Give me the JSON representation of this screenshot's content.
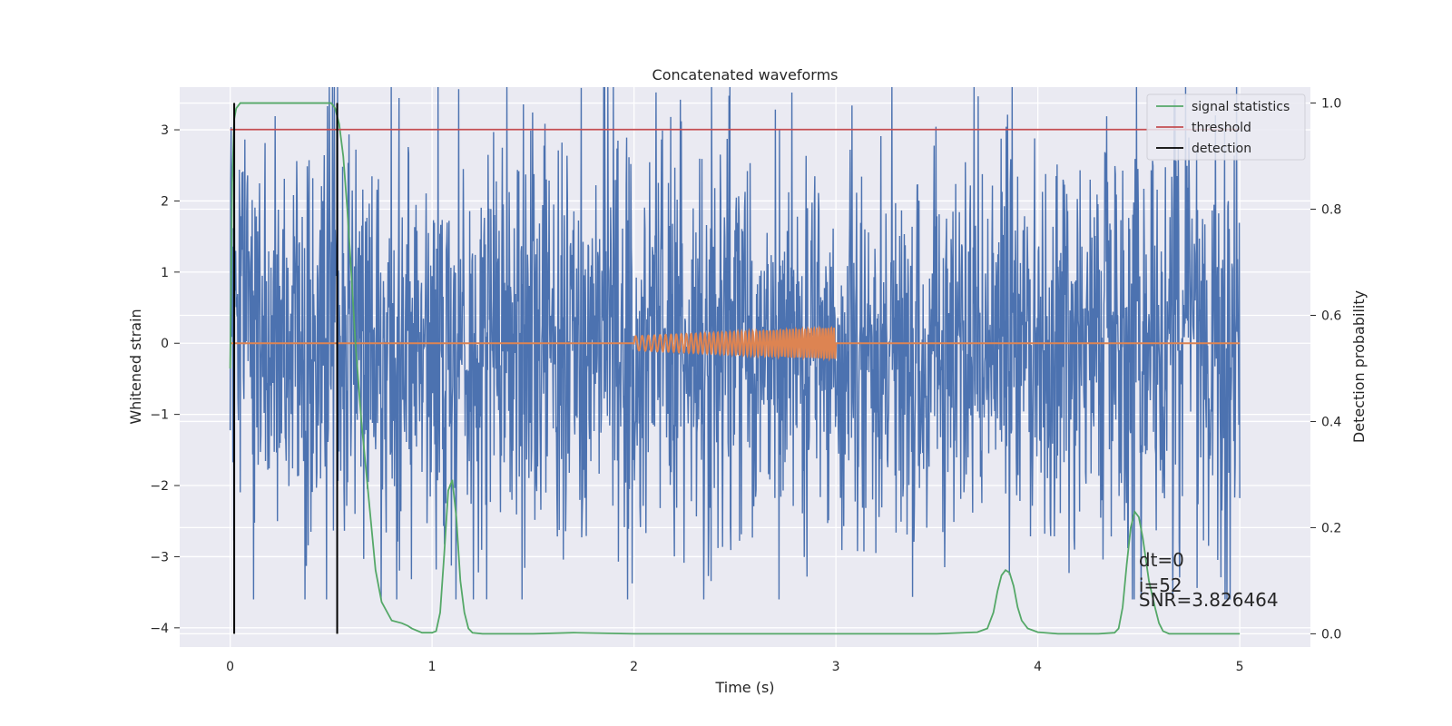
{
  "chart_data": {
    "type": "line",
    "title": "Concatenated waveforms",
    "xlabel": "Time (s)",
    "ylabel": "Whitened strain",
    "y2label": "Detection probability",
    "xlim": [
      -0.25,
      5.35
    ],
    "ylim": [
      -4.27,
      3.6
    ],
    "y2lim": [
      -0.025,
      1.03
    ],
    "x_ticks": [
      0,
      1,
      2,
      3,
      4,
      5
    ],
    "y_ticks": [
      -4,
      -3,
      -2,
      -1,
      0,
      1,
      2,
      3
    ],
    "y2_ticks": [
      0.0,
      0.2,
      0.4,
      0.6,
      0.8,
      1.0
    ],
    "x_tick_labels": [
      "0",
      "1",
      "2",
      "3",
      "4",
      "5"
    ],
    "y_tick_labels": [
      "−4",
      "−3",
      "−2",
      "−1",
      "0",
      "1",
      "2",
      "3"
    ],
    "y2_tick_labels": [
      "0.0",
      "0.2",
      "0.4",
      "0.6",
      "0.8",
      "1.0"
    ],
    "grid": true,
    "legend_position": "top-right",
    "series": [
      {
        "name": "",
        "axis": "left",
        "kind": "noise",
        "color": "#4c72b0",
        "x_range": [
          0,
          5
        ],
        "typical_amplitude": 1.5,
        "max_abs": 3.6
      },
      {
        "name": "",
        "axis": "left",
        "kind": "chirp",
        "color": "#dd8452",
        "x_range": [
          0,
          5
        ],
        "chirp_range": [
          2,
          3
        ],
        "amplitude_start": 0.1,
        "amplitude_end": 0.22
      },
      {
        "name": "signal statistics",
        "axis": "right",
        "color": "#55a868",
        "x": [
          0.0,
          0.01,
          0.02,
          0.03,
          0.05,
          0.08,
          0.12,
          0.2,
          0.3,
          0.4,
          0.45,
          0.5,
          0.52,
          0.54,
          0.56,
          0.58,
          0.6,
          0.62,
          0.65,
          0.68,
          0.7,
          0.72,
          0.75,
          0.8,
          0.85,
          0.88,
          0.9,
          0.95,
          1.0,
          1.02,
          1.04,
          1.06,
          1.08,
          1.1,
          1.12,
          1.14,
          1.16,
          1.18,
          1.2,
          1.25,
          1.5,
          1.7,
          2.0,
          2.5,
          3.0,
          3.5,
          3.7,
          3.75,
          3.78,
          3.8,
          3.82,
          3.84,
          3.86,
          3.88,
          3.9,
          3.92,
          3.95,
          4.0,
          4.1,
          4.3,
          4.38,
          4.4,
          4.42,
          4.44,
          4.46,
          4.48,
          4.5,
          4.52,
          4.55,
          4.58,
          4.6,
          4.62,
          4.65,
          4.7,
          5.0
        ],
        "values": [
          0.5,
          0.85,
          0.97,
          0.99,
          1.0,
          1.0,
          1.0,
          1.0,
          1.0,
          1.0,
          1.0,
          1.0,
          0.99,
          0.96,
          0.9,
          0.8,
          0.68,
          0.55,
          0.4,
          0.28,
          0.2,
          0.12,
          0.06,
          0.025,
          0.02,
          0.015,
          0.01,
          0.002,
          0.002,
          0.005,
          0.04,
          0.15,
          0.27,
          0.29,
          0.22,
          0.1,
          0.04,
          0.01,
          0.002,
          0.0,
          0.0,
          0.002,
          0.0,
          0.0,
          0.0,
          0.0,
          0.003,
          0.01,
          0.04,
          0.08,
          0.11,
          0.12,
          0.115,
          0.09,
          0.05,
          0.025,
          0.01,
          0.003,
          0.0,
          0.0,
          0.002,
          0.01,
          0.05,
          0.13,
          0.2,
          0.23,
          0.22,
          0.18,
          0.1,
          0.05,
          0.02,
          0.005,
          0.0,
          0.0,
          0.0
        ]
      },
      {
        "name": "threshold",
        "axis": "right",
        "color": "#c44e52",
        "x": [
          0,
          5
        ],
        "values": [
          0.95,
          0.95
        ]
      },
      {
        "name": "detection",
        "axis": "right",
        "kind": "vlines",
        "color": "#000000",
        "x": [
          0.02,
          0.53
        ],
        "range": [
          0.0,
          1.0
        ]
      }
    ],
    "annotations": [
      "dt=0",
      "i=52",
      "SNR=3.826464"
    ],
    "annotation_anchor": {
      "x": 4.5,
      "y": -3.4
    }
  },
  "colors": {
    "plot_background": "#eaeaf2",
    "grid": "#ffffff",
    "text": "#262626"
  }
}
